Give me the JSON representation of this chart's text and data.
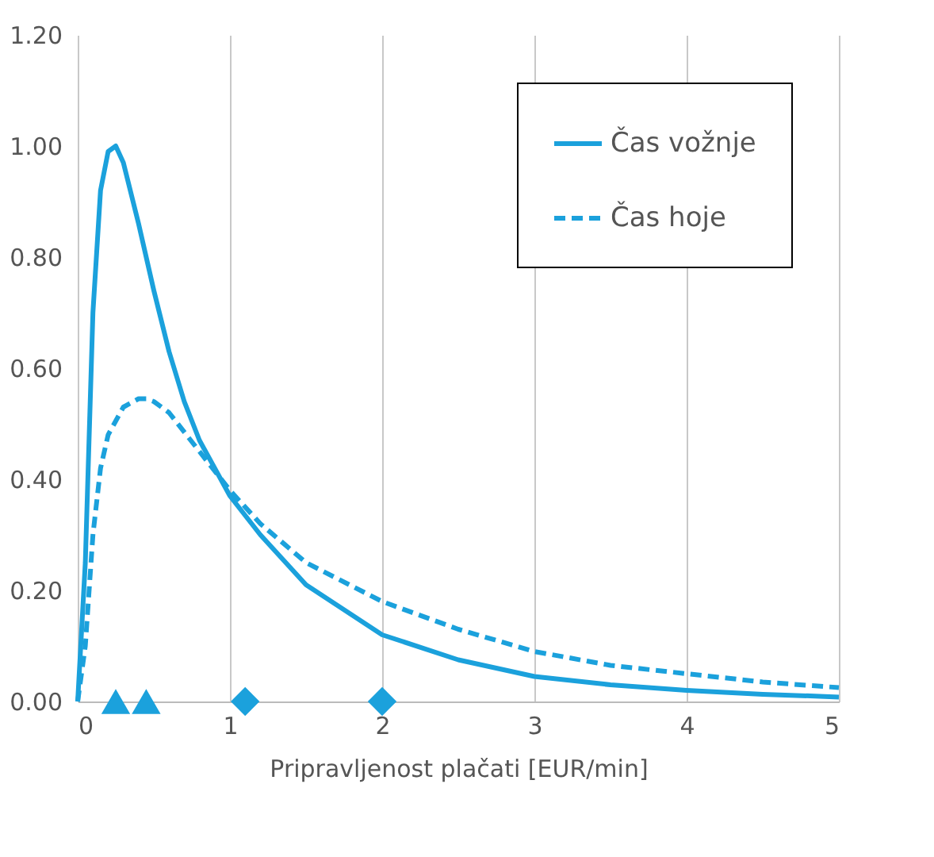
{
  "chart_data": {
    "type": "line",
    "xlabel": "Pripravljenost plačati [EUR/min]",
    "series": [
      {
        "name": "Čas vožnje",
        "color": "#1ba1dc",
        "line_style": "solid",
        "x": [
          0,
          0.05,
          0.1,
          0.15,
          0.2,
          0.25,
          0.3,
          0.4,
          0.5,
          0.6,
          0.7,
          0.8,
          1.0,
          1.2,
          1.5,
          2,
          2.5,
          3,
          3.5,
          4,
          4.5,
          5
        ],
        "values": [
          0,
          0.25,
          0.7,
          0.92,
          0.99,
          1.0,
          0.97,
          0.86,
          0.74,
          0.63,
          0.54,
          0.47,
          0.37,
          0.3,
          0.21,
          0.12,
          0.075,
          0.045,
          0.03,
          0.02,
          0.013,
          0.008
        ]
      },
      {
        "name": "Čas hoje",
        "color": "#1ba1dc",
        "line_style": "dashed",
        "x": [
          0,
          0.05,
          0.1,
          0.15,
          0.2,
          0.3,
          0.4,
          0.45,
          0.5,
          0.6,
          0.8,
          1,
          1.2,
          1.5,
          2,
          2.5,
          3,
          3.5,
          4,
          4.5,
          5
        ],
        "values": [
          0,
          0.1,
          0.3,
          0.42,
          0.48,
          0.53,
          0.545,
          0.545,
          0.54,
          0.52,
          0.45,
          0.38,
          0.32,
          0.25,
          0.18,
          0.13,
          0.09,
          0.065,
          0.05,
          0.035,
          0.025
        ]
      },
      {
        "type": "scatter",
        "marker": "triangle",
        "color": "#1ba1dc",
        "x": [
          0.25,
          0.45
        ],
        "values": [
          0,
          0
        ]
      },
      {
        "type": "scatter",
        "marker": "diamond",
        "color": "#1ba1dc",
        "x": [
          1.1,
          2.0
        ],
        "values": [
          0,
          0
        ]
      }
    ],
    "xlim": [
      0,
      5
    ],
    "xticks": [
      0,
      1,
      2,
      3,
      4,
      5
    ],
    "ylim": [
      0,
      1.2
    ],
    "yticks": [
      {
        "value": 0,
        "label": "0.00"
      },
      {
        "value": 0.2,
        "label": "0.20"
      },
      {
        "value": 0.4,
        "label": "0.40"
      },
      {
        "value": 0.6,
        "label": "0.60"
      },
      {
        "value": 0.8,
        "label": "0.80"
      },
      {
        "value": 1.0,
        "label": "1.00"
      },
      {
        "value": 1.2,
        "label": "1.20"
      }
    ],
    "grid": "x",
    "legend": "top right"
  }
}
